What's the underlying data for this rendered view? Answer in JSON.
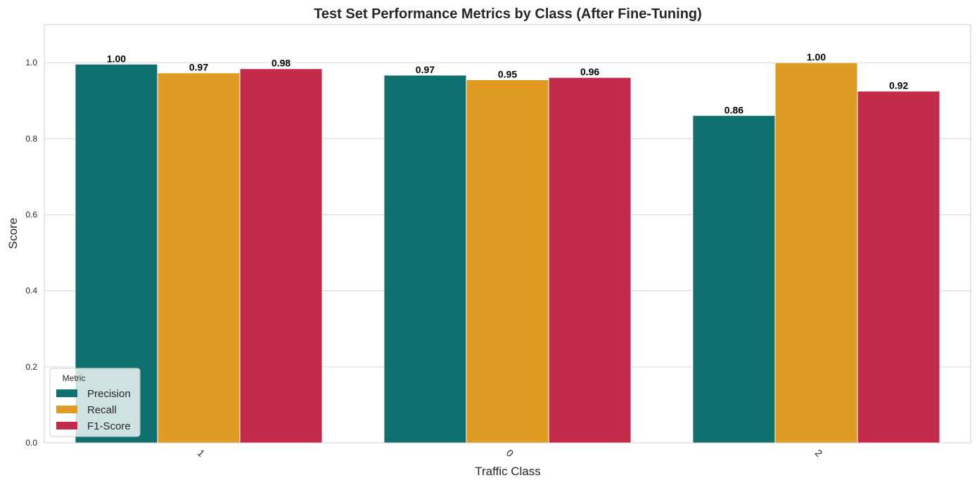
{
  "chart_data": {
    "type": "bar",
    "title": "Test Set Performance Metrics by Class (After Fine-Tuning)",
    "xlabel": "Traffic Class",
    "ylabel": "Score",
    "ylim": [
      0,
      1.1
    ],
    "yticks": [
      "0.0",
      "0.2",
      "0.4",
      "0.6",
      "0.8",
      "1.0"
    ],
    "grid": true,
    "categories": [
      "1",
      "0",
      "2"
    ],
    "series": [
      {
        "name": "Precision",
        "color": "#107070",
        "values": [
          0.996,
          0.967,
          0.861
        ],
        "labels": [
          "1.00",
          "0.97",
          "0.86"
        ]
      },
      {
        "name": "Recall",
        "color": "#e09c22",
        "values": [
          0.973,
          0.955,
          1.0
        ],
        "labels": [
          "0.97",
          "0.95",
          "1.00"
        ]
      },
      {
        "name": "F1-Score",
        "color": "#c42b4b",
        "values": [
          0.984,
          0.961,
          0.925
        ],
        "labels": [
          "0.98",
          "0.96",
          "0.92"
        ]
      }
    ],
    "legend": {
      "title": "Metric",
      "placement": "lower-left"
    }
  }
}
